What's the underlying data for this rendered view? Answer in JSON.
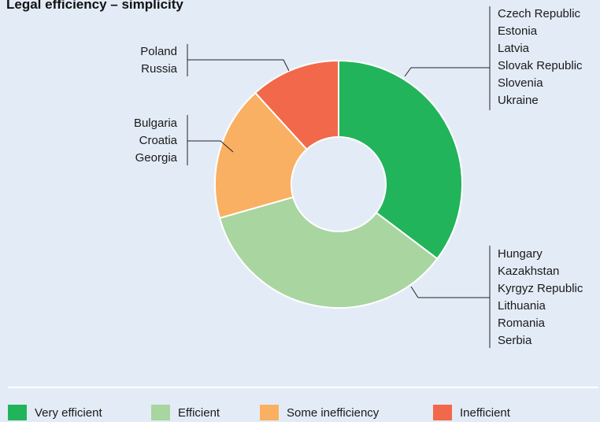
{
  "chart_data": {
    "type": "pie",
    "title": "Legal efficiency – simplicity",
    "donut": true,
    "legend_position": "bottom",
    "slices": [
      {
        "name": "Very efficient",
        "value": 6,
        "color": "#22b45a",
        "countries": [
          "Czech Republic",
          "Estonia",
          "Latvia",
          "Slovak Republic",
          "Slovenia",
          "Ukraine"
        ]
      },
      {
        "name": "Efficient",
        "value": 6,
        "color": "#a8d5a0",
        "countries": [
          "Hungary",
          "Kazakhstan",
          "Kyrgyz Republic",
          "Lithuania",
          "Romania",
          "Serbia"
        ]
      },
      {
        "name": "Some inefficiency",
        "value": 3,
        "color": "#f9b062",
        "countries": [
          "Bulgaria",
          "Croatia",
          "Georgia"
        ]
      },
      {
        "name": "Inefficient",
        "value": 2,
        "color": "#f2684a",
        "countries": [
          "Poland",
          "Russia"
        ]
      }
    ]
  }
}
